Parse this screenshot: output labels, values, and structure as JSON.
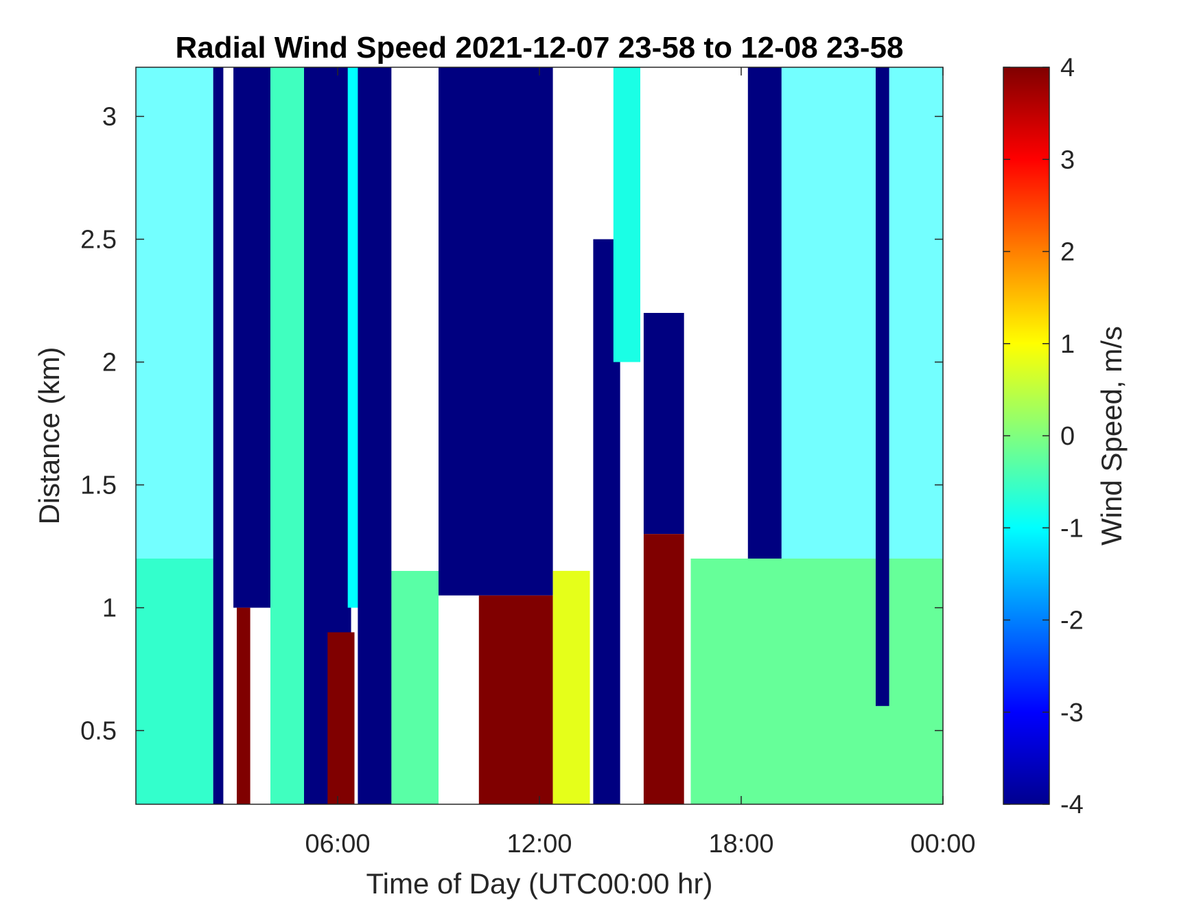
{
  "chart_data": {
    "type": "heatmap",
    "title": "Radial Wind Speed 2021-12-07 23-58 to 12-08 23-58",
    "xlabel": "Time of Day (UTC00:00 hr)",
    "ylabel": "Distance (km)",
    "x_unit": "hours",
    "xlim": [
      0,
      24
    ],
    "ylim": [
      0.2,
      3.2
    ],
    "x_ticks": [
      {
        "value": 6,
        "label": "06:00"
      },
      {
        "value": 12,
        "label": "12:00"
      },
      {
        "value": 18,
        "label": "18:00"
      },
      {
        "value": 24,
        "label": "00:00"
      }
    ],
    "y_ticks": [
      {
        "value": 0.5,
        "label": "0.5"
      },
      {
        "value": 1,
        "label": "1"
      },
      {
        "value": 1.5,
        "label": "1.5"
      },
      {
        "value": 2,
        "label": "2"
      },
      {
        "value": 2.5,
        "label": "2.5"
      },
      {
        "value": 3,
        "label": "3"
      }
    ],
    "colorbar": {
      "label": "Wind Speed, m/s",
      "colormap": "jet",
      "clim": [
        -4,
        4
      ],
      "ticks": [
        "4",
        "3",
        "2",
        "1",
        "0",
        "-1",
        "-2",
        "-3",
        "-4"
      ],
      "tick_values": [
        4,
        3,
        2,
        1,
        0,
        -1,
        -2,
        -3,
        -4
      ]
    },
    "grid": false,
    "nodata_color": "#ffffff",
    "approx_regions": [
      {
        "x": [
          0,
          2.3
        ],
        "y": [
          0.2,
          1.2
        ],
        "value": -0.6
      },
      {
        "x": [
          0,
          2.3
        ],
        "y": [
          1.2,
          3.2
        ],
        "value": -1.0,
        "sparse": true
      },
      {
        "x": [
          2.3,
          2.6
        ],
        "y": [
          0.2,
          3.2
        ],
        "value": -4
      },
      {
        "x": [
          2.9,
          4.0
        ],
        "y": [
          1.0,
          3.2
        ],
        "value": -4
      },
      {
        "x": [
          3.0,
          3.4
        ],
        "y": [
          0.2,
          1.0
        ],
        "value": 4
      },
      {
        "x": [
          4.0,
          5.0
        ],
        "y": [
          0.2,
          3.2
        ],
        "value": -0.5
      },
      {
        "x": [
          5.0,
          6.4
        ],
        "y": [
          0.2,
          3.2
        ],
        "value": -4
      },
      {
        "x": [
          5.7,
          6.5
        ],
        "y": [
          0.2,
          0.9
        ],
        "value": 4
      },
      {
        "x": [
          6.3,
          6.9
        ],
        "y": [
          1.0,
          3.2
        ],
        "value": -1.0
      },
      {
        "x": [
          6.6,
          7.6
        ],
        "y": [
          0.2,
          3.2
        ],
        "value": -4
      },
      {
        "x": [
          7.6,
          9.0
        ],
        "y": [
          0.2,
          1.15
        ],
        "value": -0.3
      },
      {
        "x": [
          7.6,
          9.0
        ],
        "y": [
          1.15,
          3.2
        ],
        "value": null
      },
      {
        "x": [
          9.0,
          12.4
        ],
        "y": [
          1.05,
          3.2
        ],
        "value": -4
      },
      {
        "x": [
          10.2,
          12.4
        ],
        "y": [
          0.2,
          1.05
        ],
        "value": 4
      },
      {
        "x": [
          12.4,
          13.5
        ],
        "y": [
          0.2,
          1.15
        ],
        "value": 0.8
      },
      {
        "x": [
          13.6,
          14.4
        ],
        "y": [
          0.2,
          2.5
        ],
        "value": -4
      },
      {
        "x": [
          14.2,
          15.0
        ],
        "y": [
          2.0,
          3.2
        ],
        "value": -0.8
      },
      {
        "x": [
          15.1,
          16.3
        ],
        "y": [
          1.3,
          2.2
        ],
        "value": -4
      },
      {
        "x": [
          15.1,
          16.3
        ],
        "y": [
          0.2,
          1.3
        ],
        "value": 4
      },
      {
        "x": [
          16.5,
          18.2
        ],
        "y": [
          1.0,
          3.2
        ],
        "value": null
      },
      {
        "x": [
          16.5,
          24.0
        ],
        "y": [
          0.2,
          1.2
        ],
        "value": -0.2
      },
      {
        "x": [
          18.2,
          19.2
        ],
        "y": [
          1.2,
          3.2
        ],
        "value": -4
      },
      {
        "x": [
          19.2,
          24.0
        ],
        "y": [
          1.2,
          3.2
        ],
        "value": -1.0,
        "sparse": true
      },
      {
        "x": [
          22.0,
          22.4
        ],
        "y": [
          0.6,
          3.2
        ],
        "value": -4
      }
    ]
  }
}
